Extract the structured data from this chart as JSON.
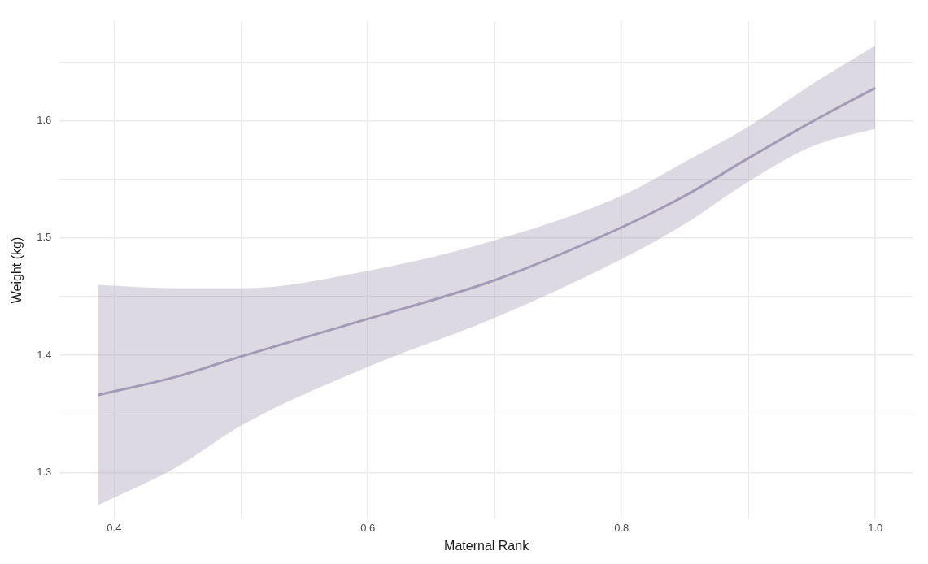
{
  "chart_data": {
    "type": "line",
    "xlabel": "Maternal Rank",
    "ylabel": "Weight (kg)",
    "x": [
      0.387,
      0.45,
      0.5,
      0.6,
      0.7,
      0.8,
      0.85,
      0.9,
      0.95,
      1.0
    ],
    "series": [
      {
        "color": "#a39bb5",
        "values": [
          1.366,
          1.382,
          1.399,
          1.431,
          1.464,
          1.509,
          1.536,
          1.568,
          1.599,
          1.628
        ],
        "lower": [
          1.272,
          1.305,
          1.34,
          1.39,
          1.432,
          1.482,
          1.512,
          1.548,
          1.578,
          1.593
        ],
        "upper": [
          1.46,
          1.457,
          1.457,
          1.472,
          1.498,
          1.536,
          1.565,
          1.595,
          1.631,
          1.664
        ]
      }
    ],
    "xlim": [
      0.357,
      1.03
    ],
    "ylim": [
      1.26,
      1.685
    ],
    "xticks": [
      {
        "value": 0.4,
        "label": "0.4"
      },
      {
        "value": 0.5,
        "label": null
      },
      {
        "value": 0.6,
        "label": "0.6"
      },
      {
        "value": 0.7,
        "label": null
      },
      {
        "value": 0.8,
        "label": "0.8"
      },
      {
        "value": 0.9,
        "label": null
      },
      {
        "value": 1.0,
        "label": "1.0"
      }
    ],
    "yticks": [
      1.3,
      {
        "value": 1.35,
        "label": null
      },
      1.4,
      {
        "value": 1.45,
        "label": null
      },
      1.5,
      {
        "value": 1.55,
        "label": null
      },
      1.6,
      {
        "value": 1.65,
        "label": null
      }
    ],
    "grid": true,
    "legend": false,
    "marker": "none",
    "line_style": "solid"
  }
}
